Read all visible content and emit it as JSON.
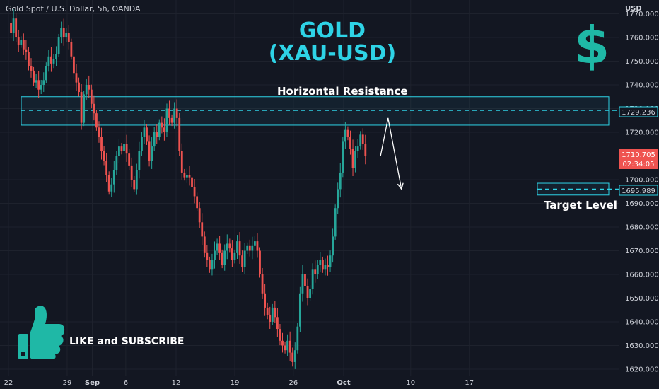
{
  "symbol_info": "Gold Spot / U.S. Dollar, 5h, OANDA",
  "headline": {
    "line1": "GOLD",
    "line2": "(XAU-USD)"
  },
  "dollar_sign": "$",
  "resistance_label": "Horizontal Resistance",
  "target_label": "Target Level",
  "like_text": "LIKE and SUBSCRIBE",
  "colors": {
    "bg": "#131722",
    "up": "#26a69a",
    "down": "#ef5350",
    "zone": "#2ed3e6",
    "text": "#d1d4dc"
  },
  "icons": [
    "thumbs-up-icon",
    "dollar-icon"
  ],
  "chart_data": {
    "type": "candlestick",
    "currency": "USD",
    "timeframe": "5h",
    "ylim": [
      1616,
      1776
    ],
    "yticks": [
      "1620.000",
      "1630.000",
      "1640.000",
      "1650.000",
      "1660.000",
      "1670.000",
      "1680.000",
      "1690.000",
      "1700.000",
      "1710.000",
      "1720.000",
      "1730.000",
      "1740.000",
      "1750.000",
      "1760.000",
      "1770.000"
    ],
    "xticks": [
      "22",
      "29",
      "Sep",
      "6",
      "12",
      "19",
      "26",
      "Oct",
      "10",
      "17"
    ],
    "xtick_positions_days": [
      0,
      7,
      10,
      14,
      20,
      27,
      34,
      40,
      48,
      55
    ],
    "last_price": "1710.705",
    "countdown": "02:34:05",
    "resistance_level": "1729.236",
    "resistance_zone": [
      1723,
      1735
    ],
    "target_level": "1695.989",
    "target_zone": [
      1693.5,
      1698.5
    ],
    "projection": [
      [
        44.4,
        1710
      ],
      [
        45.3,
        1726
      ],
      [
        46.9,
        1696
      ]
    ],
    "path": [
      [
        0,
        1766
      ],
      [
        0.3,
        1762
      ],
      [
        0.6,
        1768
      ],
      [
        0.9,
        1760
      ],
      [
        1.2,
        1757
      ],
      [
        1.5,
        1759
      ],
      [
        1.8,
        1755
      ],
      [
        2.1,
        1754
      ],
      [
        2.4,
        1748
      ],
      [
        2.7,
        1746
      ],
      [
        3.0,
        1741
      ],
      [
        3.3,
        1742
      ],
      [
        3.6,
        1738
      ],
      [
        3.9,
        1740
      ],
      [
        4.2,
        1742
      ],
      [
        4.5,
        1748
      ],
      [
        4.8,
        1752
      ],
      [
        5.1,
        1749
      ],
      [
        5.4,
        1751
      ],
      [
        5.7,
        1753
      ],
      [
        6.0,
        1760
      ],
      [
        6.3,
        1764
      ],
      [
        6.6,
        1760
      ],
      [
        6.9,
        1762
      ],
      [
        7.2,
        1758
      ],
      [
        7.5,
        1752
      ],
      [
        7.8,
        1745
      ],
      [
        8.1,
        1741
      ],
      [
        8.4,
        1737
      ],
      [
        8.7,
        1724
      ],
      [
        9.0,
        1736
      ],
      [
        9.3,
        1740
      ],
      [
        9.6,
        1738
      ],
      [
        9.9,
        1732
      ],
      [
        10.2,
        1728
      ],
      [
        10.5,
        1722
      ],
      [
        10.8,
        1718
      ],
      [
        11.1,
        1712
      ],
      [
        11.4,
        1708
      ],
      [
        11.7,
        1702
      ],
      [
        12.0,
        1695
      ],
      [
        12.3,
        1698
      ],
      [
        12.6,
        1704
      ],
      [
        12.9,
        1710
      ],
      [
        13.2,
        1714
      ],
      [
        13.5,
        1712
      ],
      [
        13.8,
        1715
      ],
      [
        14.1,
        1711
      ],
      [
        14.4,
        1706
      ],
      [
        14.7,
        1700
      ],
      [
        15.0,
        1696
      ],
      [
        15.3,
        1704
      ],
      [
        15.6,
        1712
      ],
      [
        15.9,
        1718
      ],
      [
        16.2,
        1722
      ],
      [
        16.5,
        1716
      ],
      [
        16.8,
        1708
      ],
      [
        17.1,
        1714
      ],
      [
        17.4,
        1720
      ],
      [
        17.7,
        1718
      ],
      [
        18.0,
        1724
      ],
      [
        18.3,
        1722
      ],
      [
        18.6,
        1720
      ],
      [
        18.9,
        1730
      ],
      [
        19.2,
        1726
      ],
      [
        19.5,
        1724
      ],
      [
        19.8,
        1730
      ],
      [
        20.1,
        1726
      ],
      [
        20.4,
        1712
      ],
      [
        20.7,
        1703
      ],
      [
        21.0,
        1701
      ],
      [
        21.3,
        1702
      ],
      [
        21.6,
        1701
      ],
      [
        21.9,
        1697
      ],
      [
        22.2,
        1693
      ],
      [
        22.5,
        1688
      ],
      [
        22.8,
        1682
      ],
      [
        23.1,
        1676
      ],
      [
        23.4,
        1669
      ],
      [
        23.7,
        1666
      ],
      [
        24.0,
        1662
      ],
      [
        24.3,
        1666
      ],
      [
        24.6,
        1670
      ],
      [
        24.9,
        1673
      ],
      [
        25.2,
        1669
      ],
      [
        25.5,
        1664
      ],
      [
        25.8,
        1670
      ],
      [
        26.1,
        1673
      ],
      [
        26.4,
        1671
      ],
      [
        26.7,
        1666
      ],
      [
        27.0,
        1669
      ],
      [
        27.3,
        1674
      ],
      [
        27.6,
        1668
      ],
      [
        27.9,
        1663
      ],
      [
        28.2,
        1670
      ],
      [
        28.5,
        1672
      ],
      [
        28.8,
        1670
      ],
      [
        29.1,
        1672
      ],
      [
        29.4,
        1674
      ],
      [
        29.7,
        1670
      ],
      [
        30.0,
        1660
      ],
      [
        30.3,
        1652
      ],
      [
        30.6,
        1646
      ],
      [
        30.9,
        1643
      ],
      [
        31.2,
        1640
      ],
      [
        31.5,
        1646
      ],
      [
        31.8,
        1642
      ],
      [
        32.1,
        1637
      ],
      [
        32.4,
        1632
      ],
      [
        32.7,
        1630
      ],
      [
        33.0,
        1628
      ],
      [
        33.3,
        1632
      ],
      [
        33.6,
        1627
      ],
      [
        33.9,
        1623
      ],
      [
        34.2,
        1628
      ],
      [
        34.5,
        1638
      ],
      [
        34.8,
        1652
      ],
      [
        35.1,
        1660
      ],
      [
        35.4,
        1655
      ],
      [
        35.7,
        1650
      ],
      [
        36.0,
        1654
      ],
      [
        36.3,
        1662
      ],
      [
        36.6,
        1660
      ],
      [
        36.9,
        1664
      ],
      [
        37.2,
        1666
      ],
      [
        37.5,
        1662
      ],
      [
        37.8,
        1664
      ],
      [
        38.1,
        1663
      ],
      [
        38.4,
        1668
      ],
      [
        38.7,
        1676
      ],
      [
        39.0,
        1688
      ],
      [
        39.3,
        1696
      ],
      [
        39.6,
        1703
      ],
      [
        39.9,
        1716
      ],
      [
        40.2,
        1721
      ],
      [
        40.5,
        1718
      ],
      [
        40.8,
        1713
      ],
      [
        41.1,
        1705
      ],
      [
        41.4,
        1712
      ],
      [
        41.7,
        1714
      ],
      [
        42.0,
        1719
      ],
      [
        42.3,
        1715
      ],
      [
        42.6,
        1710
      ]
    ]
  }
}
